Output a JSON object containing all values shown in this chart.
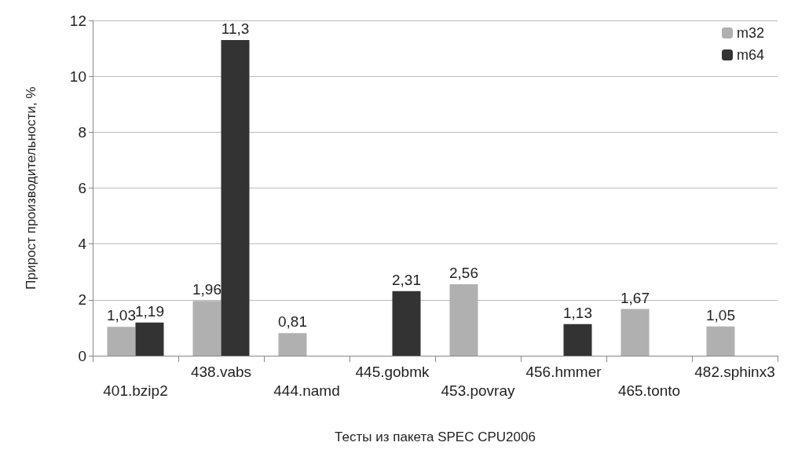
{
  "chart_data": {
    "type": "bar",
    "xlabel": "Тесты из пакета SPEC CPU2006",
    "ylabel": "Прирост производительности, %",
    "categories": [
      "401.bzip2",
      "438.vabs",
      "444.namd",
      "445.gobmk",
      "453.povray",
      "456.hmmer",
      "465.tonto",
      "482.sphinx3"
    ],
    "series": [
      {
        "name": "m32",
        "color": "#b0b0b0",
        "values": [
          1.03,
          1.96,
          0.81,
          null,
          2.56,
          null,
          1.67,
          1.05
        ],
        "value_labels": [
          "1,03",
          "1,96",
          "0,81",
          null,
          "2,56",
          null,
          "1,67",
          "1,05"
        ]
      },
      {
        "name": "m64",
        "color": "#333333",
        "values": [
          1.19,
          11.3,
          null,
          2.31,
          null,
          1.13,
          null,
          null
        ],
        "value_labels": [
          "1,19",
          "11,3",
          null,
          "2,31",
          null,
          "1,13",
          null,
          null
        ]
      }
    ],
    "ylim": [
      0,
      12
    ],
    "yticks": [
      0,
      2,
      4,
      6,
      8,
      10,
      12
    ],
    "grid": "y",
    "legend": "top right"
  }
}
